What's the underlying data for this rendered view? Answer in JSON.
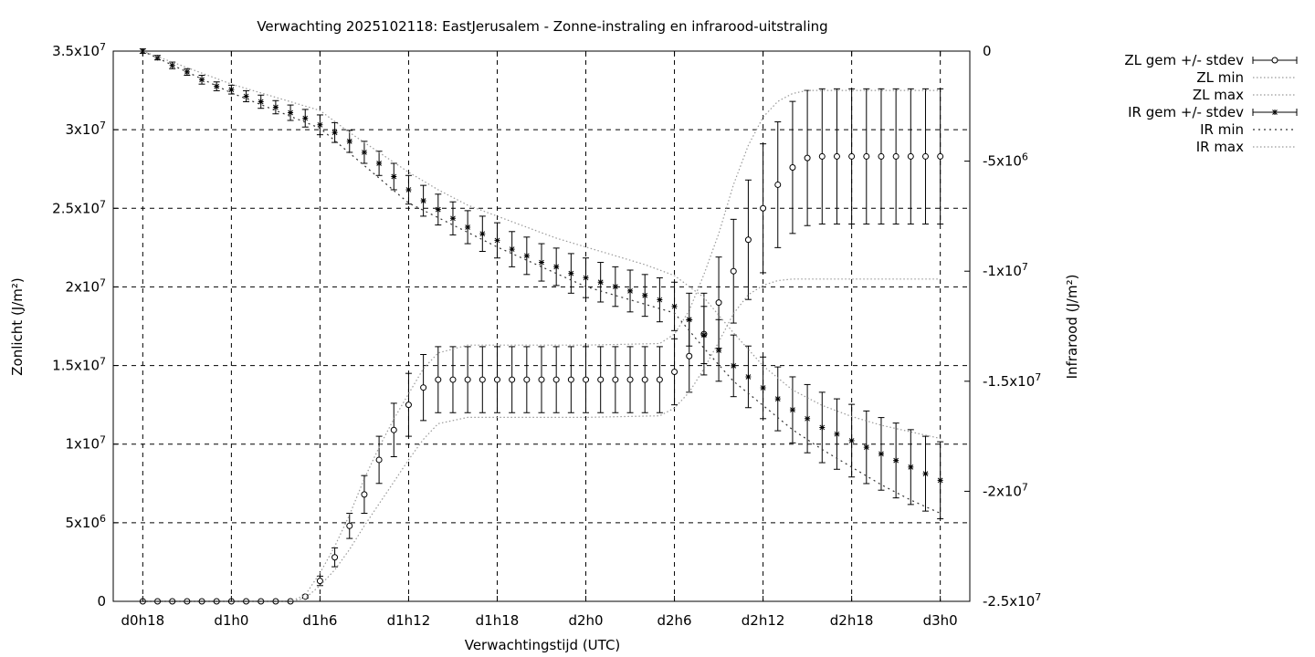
{
  "chart_data": {
    "type": "line",
    "title": "Verwachting 2025102118: EastJerusalem - Zonne-instraling en infrarood-uitstraling",
    "xlabel": "Verwachtingstijd (UTC)",
    "ylabel": "Zonlicht (J/m²)",
    "y2label": "Infrarood (J/m²)",
    "x_range_hours": [
      -2,
      56
    ],
    "ylim": [
      0,
      35000000
    ],
    "y2lim": [
      -25000000,
      0
    ],
    "x_ticks": [
      {
        "h": 0,
        "label": "d0h18"
      },
      {
        "h": 6,
        "label": "d1h0"
      },
      {
        "h": 12,
        "label": "d1h6"
      },
      {
        "h": 18,
        "label": "d1h12"
      },
      {
        "h": 24,
        "label": "d1h18"
      },
      {
        "h": 30,
        "label": "d2h0"
      },
      {
        "h": 36,
        "label": "d2h6"
      },
      {
        "h": 42,
        "label": "d2h12"
      },
      {
        "h": 48,
        "label": "d2h18"
      },
      {
        "h": 54,
        "label": "d3h0"
      }
    ],
    "y_ticks": [
      {
        "v": 0,
        "label": "0"
      },
      {
        "v": 5000000,
        "label": "5x10",
        "exp": "6"
      },
      {
        "v": 10000000,
        "label": "1x10",
        "exp": "7"
      },
      {
        "v": 15000000,
        "label": "1.5x10",
        "exp": "7"
      },
      {
        "v": 20000000,
        "label": "2x10",
        "exp": "7"
      },
      {
        "v": 25000000,
        "label": "2.5x10",
        "exp": "7"
      },
      {
        "v": 30000000,
        "label": "3x10",
        "exp": "7"
      },
      {
        "v": 35000000,
        "label": "3.5x10",
        "exp": "7"
      }
    ],
    "y2_ticks": [
      {
        "v": 0,
        "label": "0"
      },
      {
        "v": -5000000,
        "label": "-5x10",
        "exp": "6"
      },
      {
        "v": -10000000,
        "label": "-1x10",
        "exp": "7"
      },
      {
        "v": -15000000,
        "label": "-1.5x10",
        "exp": "7"
      },
      {
        "v": -20000000,
        "label": "-2x10",
        "exp": "7"
      },
      {
        "v": -25000000,
        "label": "-2.5x10",
        "exp": "7"
      }
    ],
    "grid": true,
    "legend_position": "outside-right-top",
    "series": [
      {
        "name": "ZL gem +/- stdev",
        "axis": "y",
        "marker": "circle",
        "x": [
          0,
          1,
          2,
          3,
          4,
          5,
          6,
          7,
          8,
          9,
          10,
          11,
          12,
          13,
          14,
          15,
          16,
          17,
          18,
          19,
          20,
          21,
          22,
          23,
          24,
          25,
          26,
          27,
          28,
          29,
          30,
          31,
          32,
          33,
          34,
          35,
          36,
          37,
          38,
          39,
          40,
          41,
          42,
          43,
          44,
          45,
          46,
          47,
          48,
          49,
          50,
          51,
          52,
          53,
          54
        ],
        "values": [
          0,
          0,
          0,
          0,
          0,
          0,
          0,
          0,
          0,
          0,
          0,
          300000,
          1300000,
          2800000,
          4800000,
          6800000,
          9000000,
          10900000,
          12500000,
          13600000,
          14100000,
          14100000,
          14100000,
          14100000,
          14100000,
          14100000,
          14100000,
          14100000,
          14100000,
          14100000,
          14100000,
          14100000,
          14100000,
          14100000,
          14100000,
          14100000,
          14600000,
          15600000,
          17000000,
          19000000,
          21000000,
          23000000,
          25000000,
          26500000,
          27600000,
          28200000,
          28300000,
          28300000,
          28300000,
          28300000,
          28300000,
          28300000,
          28300000,
          28300000,
          28300000
        ],
        "stdev": [
          0,
          0,
          0,
          0,
          0,
          0,
          0,
          0,
          0,
          0,
          0,
          100000,
          300000,
          600000,
          800000,
          1200000,
          1500000,
          1700000,
          2000000,
          2100000,
          2100000,
          2100000,
          2100000,
          2100000,
          2100000,
          2100000,
          2100000,
          2100000,
          2100000,
          2100000,
          2100000,
          2100000,
          2100000,
          2100000,
          2100000,
          2100000,
          2100000,
          2300000,
          2600000,
          2900000,
          3300000,
          3800000,
          4100000,
          4000000,
          4200000,
          4300000,
          4300000,
          4300000,
          4300000,
          4300000,
          4300000,
          4300000,
          4300000,
          4300000,
          4300000
        ]
      },
      {
        "name": "ZL min",
        "axis": "y",
        "style": "dotted",
        "x": [
          0,
          5,
          10,
          11,
          12,
          13,
          14,
          15,
          16,
          17,
          18,
          19,
          20,
          22,
          26,
          30,
          35,
          36,
          37,
          38,
          39,
          40,
          41,
          42,
          43,
          44,
          45,
          48,
          54
        ],
        "values": [
          0,
          0,
          0,
          200000,
          1000000,
          2000000,
          3300000,
          4800000,
          6200000,
          7600000,
          9000000,
          10300000,
          11300000,
          11700000,
          11700000,
          11700000,
          11800000,
          12300000,
          13300000,
          14800000,
          16500000,
          18300000,
          19500000,
          20100000,
          20400000,
          20500000,
          20500000,
          20500000,
          20500000
        ]
      },
      {
        "name": "ZL max",
        "axis": "y",
        "style": "dotted",
        "x": [
          0,
          5,
          10,
          11,
          12,
          13,
          14,
          15,
          16,
          17,
          18,
          19,
          20,
          22,
          26,
          30,
          35,
          36,
          37,
          38,
          39,
          40,
          41,
          42,
          43,
          44,
          45,
          48,
          54
        ],
        "values": [
          0,
          0,
          0,
          400000,
          1800000,
          3500000,
          5500000,
          7800000,
          9800000,
          11600000,
          13200000,
          14800000,
          15800000,
          16300000,
          16300000,
          16300000,
          16400000,
          17000000,
          18500000,
          20800000,
          23400000,
          26500000,
          29000000,
          30800000,
          31800000,
          32300000,
          32500000,
          32500000,
          32500000
        ]
      },
      {
        "name": "IR gem +/- stdev",
        "axis": "y2",
        "marker": "star",
        "x": [
          0,
          1,
          2,
          3,
          4,
          5,
          6,
          7,
          8,
          9,
          10,
          11,
          12,
          13,
          14,
          15,
          16,
          17,
          18,
          19,
          20,
          21,
          22,
          23,
          24,
          25,
          26,
          27,
          28,
          29,
          30,
          31,
          32,
          33,
          34,
          35,
          36,
          37,
          38,
          39,
          40,
          41,
          42,
          43,
          44,
          45,
          46,
          47,
          48,
          49,
          50,
          51,
          52,
          53,
          54
        ],
        "values": [
          0,
          -300000,
          -650000,
          -950000,
          -1300000,
          -1600000,
          -1750000,
          -2050000,
          -2300000,
          -2550000,
          -2800000,
          -3050000,
          -3350000,
          -3700000,
          -4100000,
          -4600000,
          -5100000,
          -5700000,
          -6300000,
          -6800000,
          -7200000,
          -7600000,
          -8000000,
          -8300000,
          -8600000,
          -9000000,
          -9300000,
          -9600000,
          -9800000,
          -10100000,
          -10300000,
          -10500000,
          -10700000,
          -10900000,
          -11100000,
          -11300000,
          -11600000,
          -12200000,
          -12900000,
          -13600000,
          -14300000,
          -14800000,
          -15300000,
          -15800000,
          -16300000,
          -16700000,
          -17100000,
          -17400000,
          -17700000,
          -18000000,
          -18300000,
          -18600000,
          -18900000,
          -19200000,
          -19500000
        ],
        "stdev": [
          100000,
          100000,
          150000,
          150000,
          200000,
          200000,
          200000,
          250000,
          300000,
          300000,
          350000,
          400000,
          450000,
          450000,
          500000,
          500000,
          550000,
          600000,
          650000,
          700000,
          700000,
          750000,
          750000,
          800000,
          800000,
          800000,
          850000,
          850000,
          850000,
          900000,
          900000,
          900000,
          900000,
          950000,
          950000,
          1000000,
          1100000,
          1200000,
          1300000,
          1400000,
          1400000,
          1400000,
          1400000,
          1450000,
          1500000,
          1550000,
          1600000,
          1600000,
          1650000,
          1650000,
          1650000,
          1700000,
          1700000,
          1700000,
          1750000
        ]
      },
      {
        "name": "IR min",
        "axis": "y2",
        "style": "dashed",
        "x": [
          0,
          6,
          12,
          18,
          24,
          30,
          36,
          38,
          40,
          42,
          44,
          46,
          48,
          50,
          52,
          54
        ],
        "values": [
          0,
          -1900000,
          -3500000,
          -6900000,
          -8900000,
          -10700000,
          -11900000,
          -13500000,
          -15000000,
          -16100000,
          -17200000,
          -18100000,
          -18900000,
          -19700000,
          -20400000,
          -21000000
        ]
      },
      {
        "name": "IR max",
        "axis": "y2",
        "style": "dotted",
        "x": [
          0,
          6,
          12,
          14,
          16,
          18,
          20,
          22,
          24,
          26,
          28,
          30,
          32,
          34,
          36,
          38,
          40,
          42,
          44,
          46,
          48,
          50,
          52,
          54
        ],
        "values": [
          0,
          -1500000,
          -2700000,
          -3700000,
          -4600000,
          -5500000,
          -6300000,
          -7000000,
          -7500000,
          -8000000,
          -8500000,
          -8900000,
          -9300000,
          -9700000,
          -10200000,
          -11200000,
          -12800000,
          -14300000,
          -15400000,
          -16100000,
          -16600000,
          -17000000,
          -17300000,
          -17600000
        ]
      }
    ]
  }
}
